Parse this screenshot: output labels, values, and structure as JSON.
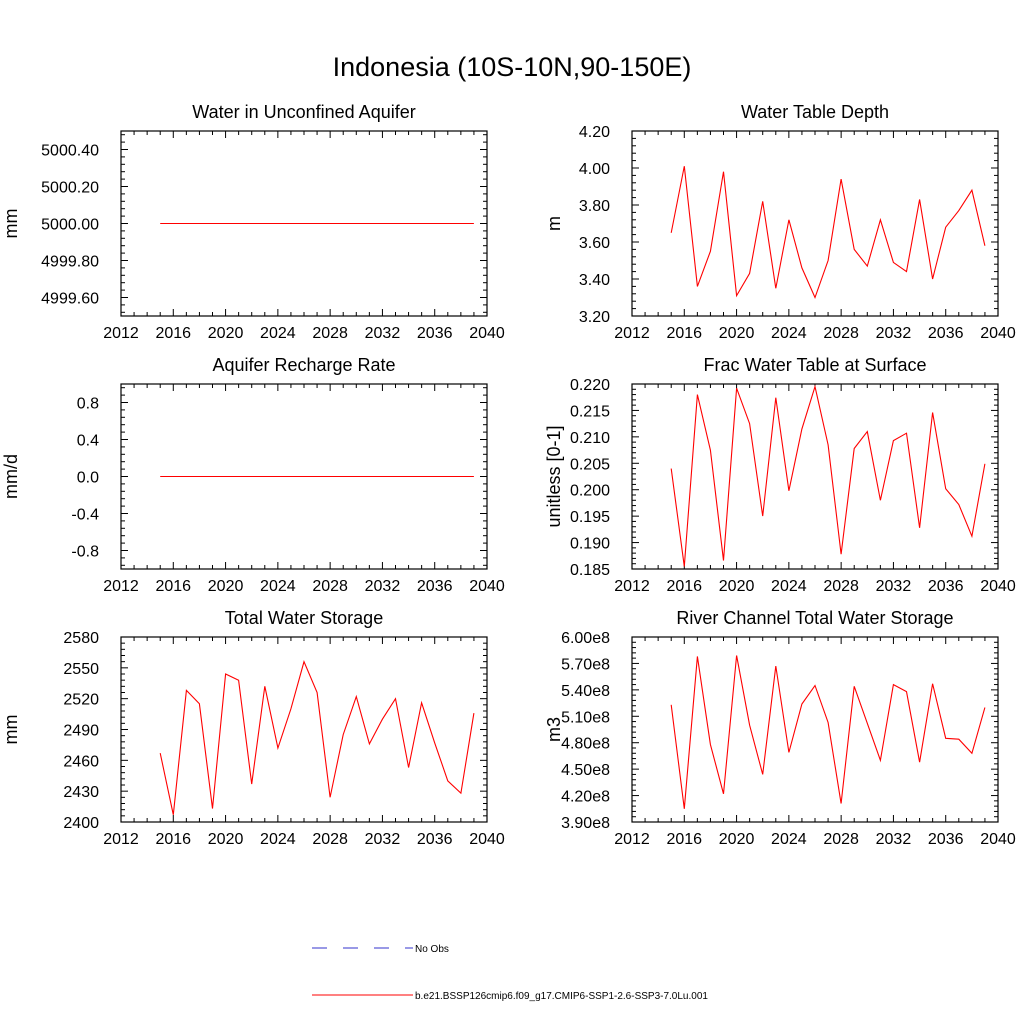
{
  "page": {
    "title": "Indonesia (10S-10N,90-150E)"
  },
  "legend": {
    "entries": [
      {
        "label": "No Obs",
        "color": "#3333cc",
        "style": "dashed"
      },
      {
        "label": "b.e21.BSSP126cmip6.f09_g17.CMIP6-SSP1-2.6-SSP3-7.0Lu.001",
        "color": "#ff0000",
        "style": "solid"
      }
    ]
  },
  "chart_data": [
    {
      "type": "line",
      "title": "Water in Unconfined Aquifer",
      "ylabel": "mm",
      "xlim": [
        2012,
        2040
      ],
      "xticks": [
        2012,
        2016,
        2020,
        2024,
        2028,
        2032,
        2036,
        2040
      ],
      "ylim": [
        4999.5,
        5000.5
      ],
      "yticks": [
        4999.6,
        4999.8,
        5000.0,
        5000.2,
        5000.4
      ],
      "ytick_labels": [
        "4999.60",
        "4999.80",
        "5000.00",
        "5000.20",
        "5000.40"
      ],
      "series": [
        {
          "color": "#ff0000",
          "x": [
            2015,
            2039
          ],
          "y": [
            5000.0,
            5000.0
          ]
        }
      ]
    },
    {
      "type": "line",
      "title": "Water Table Depth",
      "ylabel": "m",
      "xlim": [
        2012,
        2040
      ],
      "xticks": [
        2012,
        2016,
        2020,
        2024,
        2028,
        2032,
        2036,
        2040
      ],
      "ylim": [
        3.2,
        4.2
      ],
      "yticks": [
        3.2,
        3.4,
        3.6,
        3.8,
        4.0,
        4.2
      ],
      "ytick_labels": [
        "3.20",
        "3.40",
        "3.60",
        "3.80",
        "4.00",
        "4.20"
      ],
      "series": [
        {
          "color": "#ff0000",
          "x": [
            2015,
            2016,
            2017,
            2018,
            2019,
            2020,
            2021,
            2022,
            2023,
            2024,
            2025,
            2026,
            2027,
            2028,
            2029,
            2030,
            2031,
            2032,
            2033,
            2034,
            2035,
            2036,
            2037,
            2038,
            2039
          ],
          "y": [
            3.65,
            4.01,
            3.36,
            3.55,
            3.98,
            3.31,
            3.43,
            3.82,
            3.35,
            3.72,
            3.46,
            3.3,
            3.5,
            3.94,
            3.56,
            3.47,
            3.72,
            3.49,
            3.44,
            3.83,
            3.4,
            3.68,
            3.77,
            3.88,
            3.58
          ]
        }
      ]
    },
    {
      "type": "line",
      "title": "Aquifer Recharge Rate",
      "ylabel": "mm/d",
      "xlim": [
        2012,
        2040
      ],
      "xticks": [
        2012,
        2016,
        2020,
        2024,
        2028,
        2032,
        2036,
        2040
      ],
      "ylim": [
        -1.0,
        1.0
      ],
      "yticks": [
        -0.8,
        -0.4,
        0.0,
        0.4,
        0.8
      ],
      "ytick_labels": [
        "-0.8",
        "-0.4",
        "0.0",
        "0.4",
        "0.8"
      ],
      "series": [
        {
          "color": "#ff0000",
          "x": [
            2015,
            2039
          ],
          "y": [
            0.0,
            0.0
          ]
        }
      ]
    },
    {
      "type": "line",
      "title": "Frac Water Table at Surface",
      "ylabel": "unitless [0-1]",
      "xlim": [
        2012,
        2040
      ],
      "xticks": [
        2012,
        2016,
        2020,
        2024,
        2028,
        2032,
        2036,
        2040
      ],
      "ylim": [
        0.185,
        0.22
      ],
      "yticks": [
        0.185,
        0.19,
        0.195,
        0.2,
        0.205,
        0.21,
        0.215,
        0.22
      ],
      "ytick_labels": [
        "0.185",
        "0.190",
        "0.195",
        "0.200",
        "0.205",
        "0.210",
        "0.215",
        "0.220"
      ],
      "series": [
        {
          "color": "#ff0000",
          "x": [
            2015,
            2016,
            2017,
            2018,
            2019,
            2020,
            2021,
            2022,
            2023,
            2024,
            2025,
            2026,
            2027,
            2028,
            2029,
            2030,
            2031,
            2032,
            2033,
            2034,
            2035,
            2036,
            2037,
            2038,
            2039
          ],
          "y": [
            0.204,
            0.1855,
            0.218,
            0.2075,
            0.1866,
            0.2192,
            0.2125,
            0.195,
            0.2174,
            0.1998,
            0.2115,
            0.2195,
            0.2085,
            0.1878,
            0.2078,
            0.211,
            0.198,
            0.2093,
            0.2107,
            0.1928,
            0.2146,
            0.2002,
            0.1972,
            0.1912,
            0.2049
          ]
        }
      ]
    },
    {
      "type": "line",
      "title": "Total Water Storage",
      "ylabel": "mm",
      "xlim": [
        2012,
        2040
      ],
      "xticks": [
        2012,
        2016,
        2020,
        2024,
        2028,
        2032,
        2036,
        2040
      ],
      "ylim": [
        2400,
        2580
      ],
      "yticks": [
        2400,
        2430,
        2460,
        2490,
        2520,
        2550,
        2580
      ],
      "ytick_labels": [
        "2400",
        "2430",
        "2460",
        "2490",
        "2520",
        "2550",
        "2580"
      ],
      "series": [
        {
          "color": "#ff0000",
          "x": [
            2015,
            2016,
            2017,
            2018,
            2019,
            2020,
            2021,
            2022,
            2023,
            2024,
            2025,
            2026,
            2027,
            2028,
            2029,
            2030,
            2031,
            2032,
            2033,
            2034,
            2035,
            2036,
            2037,
            2038,
            2039
          ],
          "y": [
            2467,
            2407,
            2528,
            2515,
            2413,
            2544,
            2538,
            2437,
            2532,
            2472,
            2510,
            2556,
            2526,
            2424,
            2485,
            2522,
            2476,
            2500,
            2520,
            2453,
            2516,
            2477,
            2440,
            2428,
            2506
          ]
        }
      ]
    },
    {
      "type": "line",
      "title": "River Channel Total Water Storage",
      "ylabel": "m3",
      "xlim": [
        2012,
        2040
      ],
      "xticks": [
        2012,
        2016,
        2020,
        2024,
        2028,
        2032,
        2036,
        2040
      ],
      "ylim": [
        390000000.0,
        600000000.0
      ],
      "yticks": [
        390000000.0,
        420000000.0,
        450000000.0,
        480000000.0,
        510000000.0,
        540000000.0,
        570000000.0,
        600000000.0
      ],
      "ytick_labels": [
        "3.90e8",
        "4.20e8",
        "4.50e8",
        "4.80e8",
        "5.10e8",
        "5.40e8",
        "5.70e8",
        "6.00e8"
      ],
      "series": [
        {
          "color": "#ff0000",
          "x": [
            2015,
            2016,
            2017,
            2018,
            2019,
            2020,
            2021,
            2022,
            2023,
            2024,
            2025,
            2026,
            2027,
            2028,
            2029,
            2030,
            2031,
            2032,
            2033,
            2034,
            2035,
            2036,
            2037,
            2038,
            2039
          ],
          "y": [
            523000000.0,
            405000000.0,
            578000000.0,
            478000000.0,
            422000000.0,
            579000000.0,
            500000000.0,
            444000000.0,
            567000000.0,
            469000000.0,
            524000000.0,
            545000000.0,
            503000000.0,
            411000000.0,
            544000000.0,
            502000000.0,
            460000000.0,
            546000000.0,
            538000000.0,
            458000000.0,
            547000000.0,
            485000000.0,
            484000000.0,
            468000000.0,
            520000000.0
          ]
        }
      ]
    }
  ]
}
